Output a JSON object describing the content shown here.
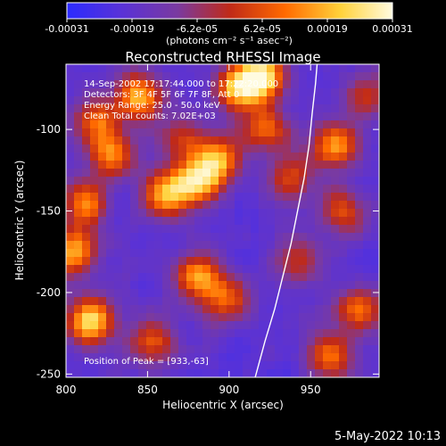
{
  "chart_data": {
    "type": "heatmap",
    "title": "Reconstructed RHESSI Image",
    "xlabel": "Heliocentric X (arcsec)",
    "ylabel": "Heliocentric Y (arcsec)",
    "xlim": [
      800,
      992
    ],
    "ylim": [
      -252,
      -60
    ],
    "x_ticks": [
      800,
      850,
      900,
      950
    ],
    "y_ticks": [
      -100,
      -150,
      -200,
      -250
    ],
    "colorbar": {
      "range": [
        -0.00031,
        0.00031
      ],
      "tick_labels": [
        "-0.00031",
        "-0.00019",
        "-6.2e-05",
        "6.2e-05",
        "0.00019",
        "0.00031"
      ],
      "unit_label": "(photons cm⁻² s⁻¹ asec⁻²)",
      "colors": [
        "#2b2bff",
        "#5a32d6",
        "#7a3aa0",
        "#c02a18",
        "#ff6a00",
        "#ffd23a",
        "#fffbe0"
      ]
    },
    "annotations": [
      "14-Sep-2002 17:17:44.000 to 17:22:20.000",
      "Detectors: 3F 4F 5F 6F 7F 8F, Att 0",
      "Energy Range: 25.0 - 50.0 keV",
      "Clean    Total counts: 7.02E+03"
    ],
    "peak_label": "Position of Peak = [933,-63]",
    "peak_position": [
      933,
      -63
    ],
    "limb_curve": [
      [
        916,
        -252
      ],
      [
        922,
        -230
      ],
      [
        928,
        -210
      ],
      [
        933,
        -190
      ],
      [
        938,
        -170
      ],
      [
        942,
        -150
      ],
      [
        946,
        -130
      ],
      [
        949,
        -110
      ],
      [
        951,
        -90
      ],
      [
        953,
        -72
      ],
      [
        954,
        -60
      ]
    ],
    "hotspots": [
      {
        "x": 805,
        "y": -175,
        "strength": 0.8
      },
      {
        "x": 815,
        "y": -218,
        "strength": 0.95
      },
      {
        "x": 812,
        "y": -145,
        "strength": 0.7
      },
      {
        "x": 828,
        "y": -115,
        "strength": 0.65
      },
      {
        "x": 845,
        "y": -80,
        "strength": 0.85
      },
      {
        "x": 862,
        "y": -140,
        "strength": 0.8
      },
      {
        "x": 880,
        "y": -132,
        "strength": 0.85
      },
      {
        "x": 893,
        "y": -118,
        "strength": 0.8
      },
      {
        "x": 905,
        "y": -75,
        "strength": 0.85
      },
      {
        "x": 920,
        "y": -68,
        "strength": 1.0
      },
      {
        "x": 923,
        "y": -100,
        "strength": 0.6
      },
      {
        "x": 882,
        "y": -190,
        "strength": 0.75
      },
      {
        "x": 898,
        "y": -205,
        "strength": 0.55
      },
      {
        "x": 852,
        "y": -230,
        "strength": 0.6
      },
      {
        "x": 965,
        "y": -110,
        "strength": 0.75
      },
      {
        "x": 970,
        "y": -150,
        "strength": 0.55
      },
      {
        "x": 980,
        "y": -210,
        "strength": 0.6
      },
      {
        "x": 962,
        "y": -238,
        "strength": 0.65
      },
      {
        "x": 942,
        "y": -180,
        "strength": 0.45
      },
      {
        "x": 985,
        "y": -80,
        "strength": 0.5
      },
      {
        "x": 818,
        "y": -95,
        "strength": 0.6
      },
      {
        "x": 870,
        "y": -105,
        "strength": 0.45
      },
      {
        "x": 938,
        "y": -130,
        "strength": 0.5
      }
    ],
    "grid": false
  },
  "timestamp": "5-May-2022 10:13"
}
